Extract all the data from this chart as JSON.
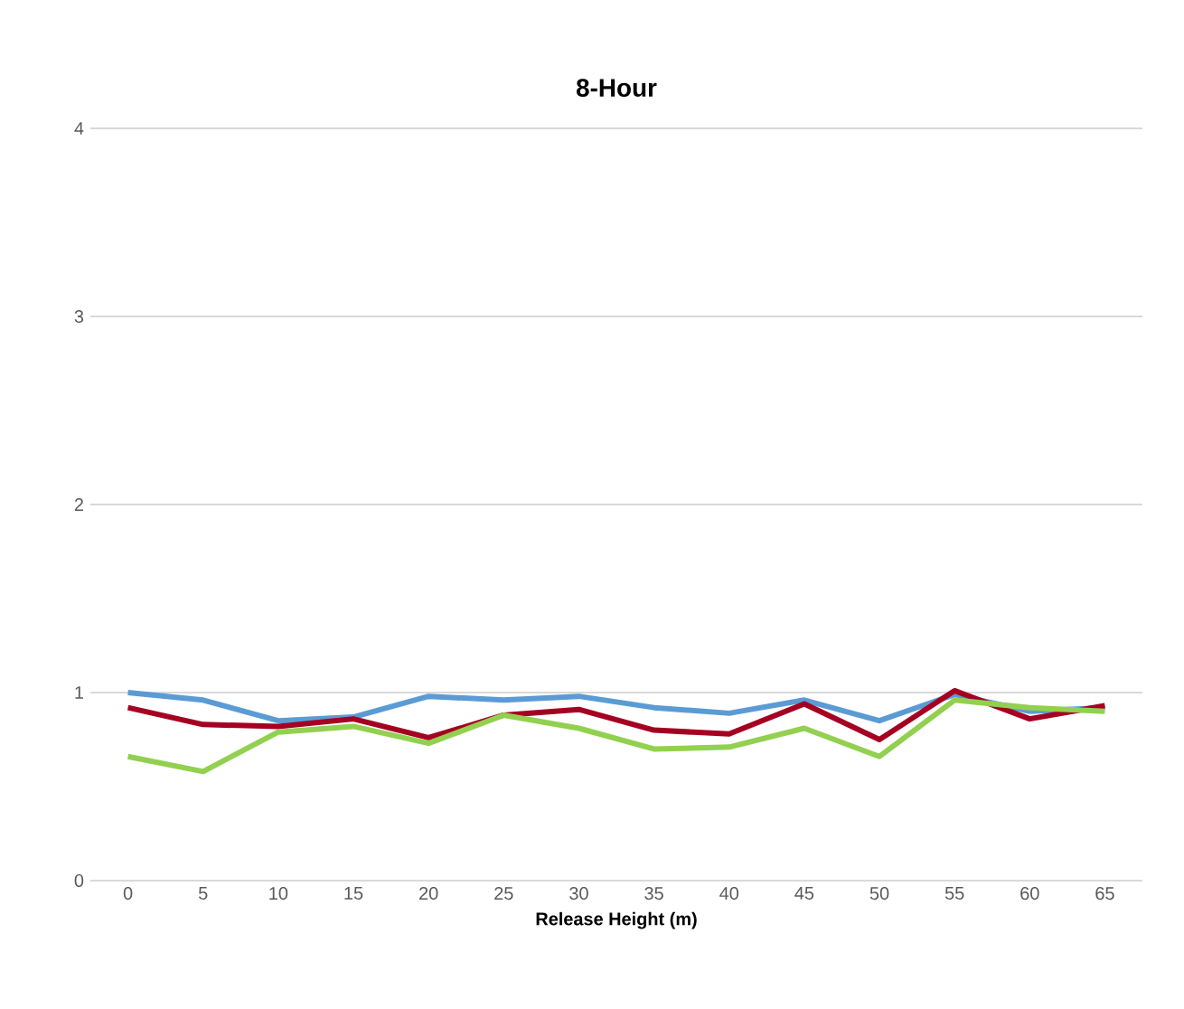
{
  "chart_data": {
    "type": "line",
    "title": "8-Hour",
    "xlabel": "Release Height (m)",
    "categories": [
      "0",
      "5",
      "10",
      "15",
      "20",
      "25",
      "30",
      "35",
      "40",
      "45",
      "50",
      "55",
      "60",
      "65"
    ],
    "series": [
      {
        "color": "#5b9bd5",
        "values": [
          1.0,
          0.96,
          0.85,
          0.87,
          0.98,
          0.96,
          0.98,
          0.92,
          0.89,
          0.96,
          0.85,
          0.99,
          0.9,
          0.92
        ]
      },
      {
        "color": "#a50021",
        "values": [
          0.92,
          0.83,
          0.82,
          0.86,
          0.76,
          0.88,
          0.91,
          0.8,
          0.78,
          0.94,
          0.75,
          1.01,
          0.86,
          0.93
        ]
      },
      {
        "color": "#92d050",
        "values": [
          0.66,
          0.58,
          0.79,
          0.82,
          0.73,
          0.88,
          0.81,
          0.7,
          0.71,
          0.81,
          0.66,
          0.96,
          0.92,
          0.9
        ]
      }
    ],
    "ylim": [
      0,
      4
    ],
    "yticks": [
      0,
      1,
      2,
      3,
      4
    ],
    "grid": "y",
    "marker": "none",
    "line_style": "solid"
  }
}
